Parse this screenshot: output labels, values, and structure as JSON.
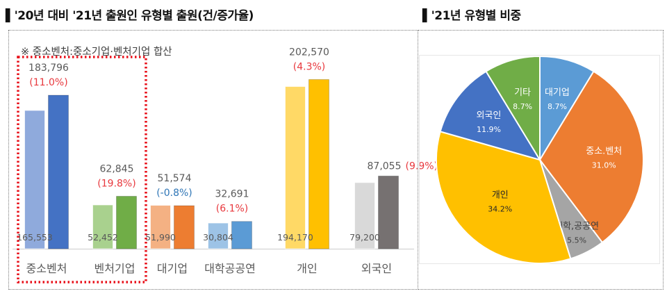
{
  "left_title": "▌'20년 대비 '21년 출원인 유형별 출원(건/증가율)",
  "right_title": "▌'21년 유형별 비중",
  "chart_data": [
    {
      "type": "bar",
      "note": "※ 중소벤처:중소기업·벤처기업 합산",
      "categories": [
        "중소벤처",
        "벤처기업",
        "대기업",
        "대학공공연",
        "개인",
        "외국인"
      ],
      "series": [
        {
          "values": [
            165553,
            52452,
            51990,
            30804,
            194170,
            79200
          ],
          "labels": [
            "165,553",
            "52,452",
            "51,990",
            "30,804",
            "194,170",
            "79,200"
          ],
          "colors": [
            "#8faadc",
            "#a9d18e",
            "#f4b183",
            "#9dc3e6",
            "#ffd966",
            "#d9d9d9"
          ]
        },
        {
          "values": [
            183796,
            62845,
            51574,
            32691,
            202570,
            87055
          ],
          "labels": [
            "183,796",
            "62,845",
            "51,574",
            "32,691",
            "202,570",
            "87,055"
          ],
          "colors": [
            "#4472c4",
            "#70ad47",
            "#ed7d31",
            "#5b9bd5",
            "#ffc000",
            "#767171"
          ]
        }
      ],
      "growth_labels": [
        "(11.0%)",
        "(19.8%)",
        "(-0.8%)",
        "(6.1%)",
        "(4.3%)",
        "(9.9%)"
      ],
      "growth_colors": [
        "#e8383d",
        "#e8383d",
        "#2e75b6",
        "#e8383d",
        "#e8383d",
        "#e8383d"
      ],
      "highlight_color": "#e8101a",
      "ylim": [
        0,
        210000
      ],
      "grid": false
    },
    {
      "type": "pie",
      "slices": [
        {
          "label": "대기업",
          "value": 8.7,
          "pct": "8.7%",
          "color": "#5b9bd5",
          "text_color": "#ffffff"
        },
        {
          "label": "중소.벤처",
          "value": 31.0,
          "pct": "31.0%",
          "color": "#ed7d31",
          "text_color": "#ffffff"
        },
        {
          "label": "대학,공공연",
          "value": 5.5,
          "pct": "5.5%",
          "color": "#a5a5a5",
          "text_color": "#404040"
        },
        {
          "label": "개인",
          "value": 34.2,
          "pct": "34.2%",
          "color": "#ffc000",
          "text_color": "#262626"
        },
        {
          "label": "외국인",
          "value": 11.9,
          "pct": "11.9%",
          "color": "#4472c4",
          "text_color": "#ffffff"
        },
        {
          "label": "기타",
          "value": 8.7,
          "pct": "8.7%",
          "color": "#70ad47",
          "text_color": "#ffffff"
        }
      ]
    }
  ]
}
